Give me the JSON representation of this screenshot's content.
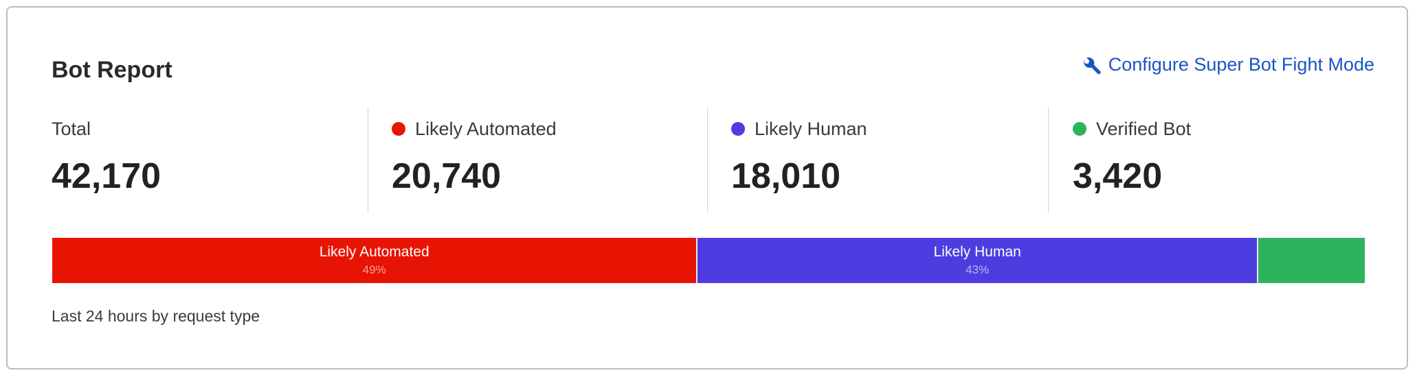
{
  "header": {
    "title": "Bot Report",
    "configure_link": "Configure Super Bot Fight Mode",
    "configure_icon": "wrench-icon",
    "link_color": "#1a55c4"
  },
  "stats": [
    {
      "label": "Total",
      "value": "42,170"
    },
    {
      "label": "Likely Automated",
      "value": "20,740",
      "color": "#e81403"
    },
    {
      "label": "Likely Human",
      "value": "18,010",
      "color": "#4d3de0"
    },
    {
      "label": "Verified Bot",
      "value": "3,420",
      "color": "#2db35d"
    }
  ],
  "chart_data": {
    "type": "bar",
    "orientation": "horizontal-stacked",
    "categories": [
      "Likely Automated",
      "Likely Human",
      "Verified Bot"
    ],
    "values": [
      20740,
      18010,
      3420
    ],
    "colors": [
      "#e81403",
      "#4d3de0",
      "#2db35d"
    ],
    "segment_labels": [
      {
        "label": "Likely Automated",
        "percent": "49%"
      },
      {
        "label": "Likely Human",
        "percent": "43%"
      },
      {
        "label": "",
        "percent": ""
      }
    ]
  },
  "footer": {
    "caption": "Last 24 hours by request type"
  }
}
